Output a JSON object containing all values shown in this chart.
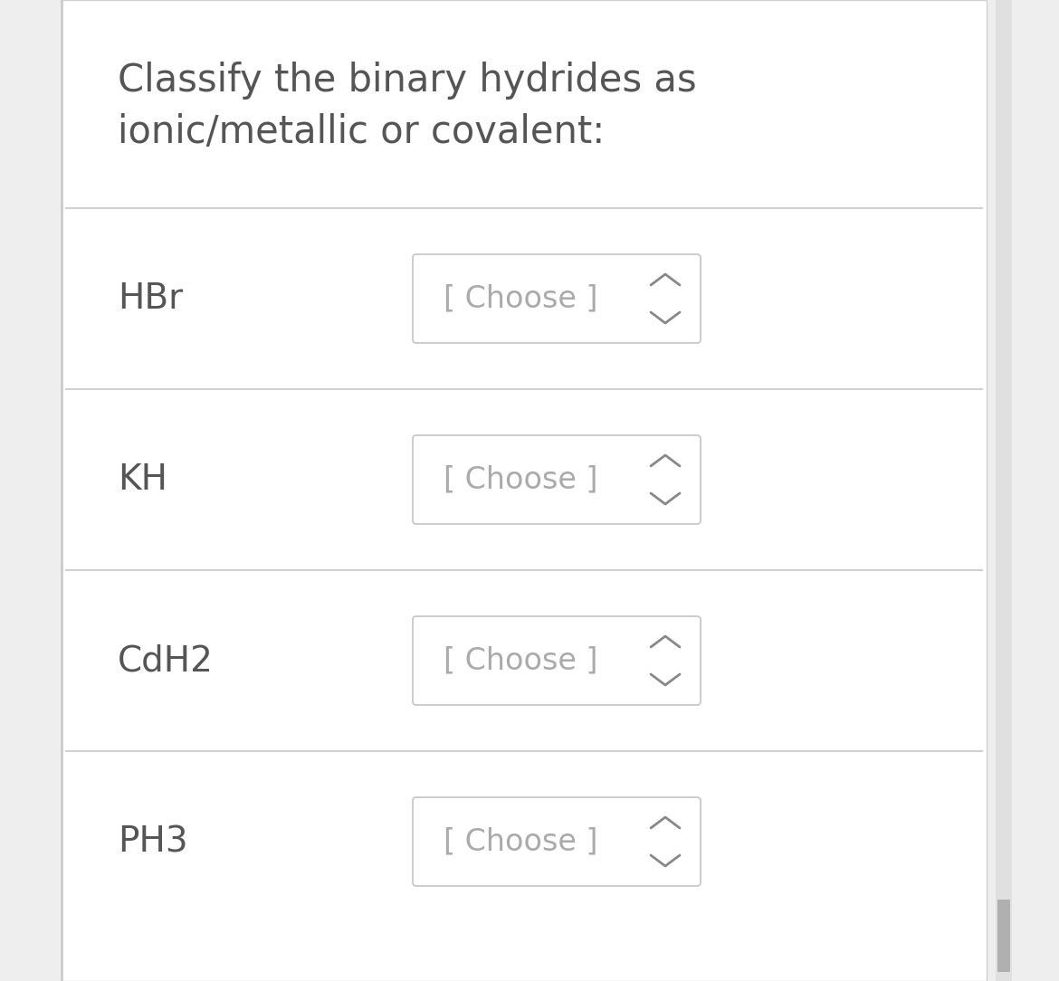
{
  "title_line1": "Classify the binary hydrides as",
  "title_line2": "ionic/metallic or covalent:",
  "compounds": [
    "HBr",
    "KH",
    "CdH2",
    "PH3"
  ],
  "dropdown_text": "[ Choose ]",
  "bg_color": "#eeeeee",
  "panel_color": "#ffffff",
  "text_color": "#555555",
  "label_color": "#555555",
  "line_color": "#d0d0d0",
  "box_fill": "#ffffff",
  "box_edge": "#c8c8c8",
  "title_fontsize": 30,
  "compound_fontsize": 28,
  "dropdown_fontsize": 24,
  "scrollbar_color": "#c8c8c8"
}
